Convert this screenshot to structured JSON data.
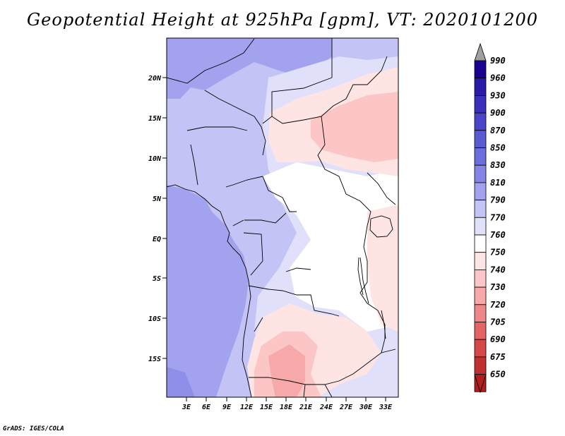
{
  "title": "Geopotential Height at 925hPa [gpm], VT: 2020101200",
  "footer": "GrADS: IGES/COLA",
  "chart_data": {
    "type": "heatmap",
    "variable": "Geopotential Height",
    "level": "925hPa",
    "units": "gpm",
    "valid_time": "2020101200",
    "lat_ticks": [
      "20N",
      "15N",
      "10N",
      "5N",
      "EQ",
      "5S",
      "10S",
      "15S"
    ],
    "lon_ticks": [
      "3E",
      "6E",
      "9E",
      "12E",
      "15E",
      "18E",
      "21E",
      "24E",
      "27E",
      "30E",
      "33E"
    ],
    "colorbar": {
      "levels": [
        "990",
        "960",
        "930",
        "900",
        "870",
        "850",
        "830",
        "810",
        "790",
        "770",
        "760",
        "750",
        "740",
        "730",
        "720",
        "705",
        "690",
        "675",
        "650"
      ],
      "colors": [
        "#1a0090",
        "#2a1aa8",
        "#3a30bb",
        "#4a45c8",
        "#5a5ad3",
        "#6d6ede",
        "#8585e8",
        "#a2a2ef",
        "#c3c3f5",
        "#e0e0fa",
        "#ffffff",
        "#ffe4e4",
        "#fcc6c6",
        "#f7a8a8",
        "#ef8888",
        "#e36464",
        "#d44848",
        "#c33030",
        "#b21e1e"
      ],
      "top_arrow_color": "#a0a0a0",
      "bottom_arrow_color": "#b21e1e"
    }
  }
}
